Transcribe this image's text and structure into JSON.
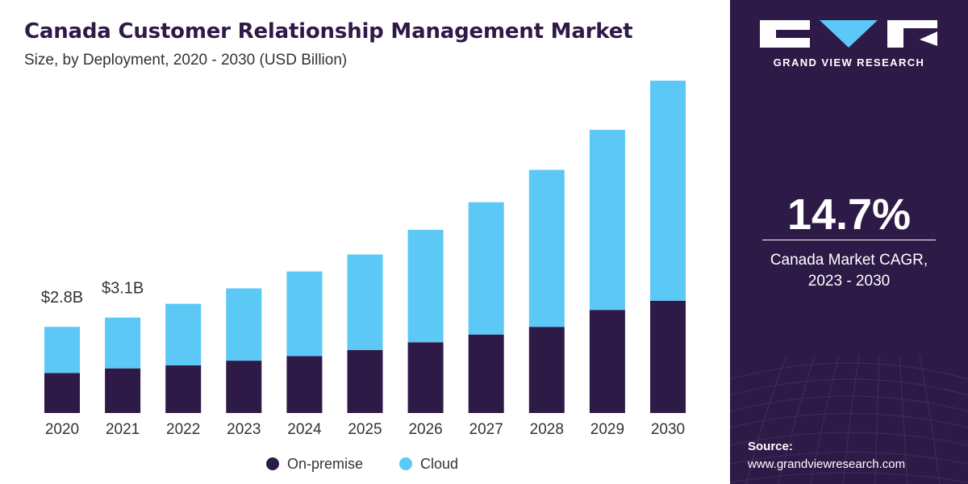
{
  "header": {
    "title": "Canada Customer Relationship Management Market",
    "subtitle": "Size, by Deployment, 2020 - 2030 (USD Billion)"
  },
  "sidebar": {
    "logo_text": "GRAND VIEW RESEARCH",
    "cagr_value": "14.7%",
    "cagr_label_line1": "Canada Market CAGR,",
    "cagr_label_line2": "2023 - 2030",
    "source_label": "Source:",
    "source_url": "www.grandviewresearch.com"
  },
  "colors": {
    "on_premise": "#2e1a47",
    "cloud": "#5bc8f5",
    "panel": "#2e1a47",
    "title": "#2e1a47",
    "logo_accent": "#5bc8f5"
  },
  "chart_data": {
    "type": "bar",
    "stacked": true,
    "categories": [
      "2020",
      "2021",
      "2022",
      "2023",
      "2024",
      "2025",
      "2026",
      "2027",
      "2028",
      "2029",
      "2030"
    ],
    "series": [
      {
        "name": "On-premise",
        "values": [
          1.3,
          1.45,
          1.55,
          1.7,
          1.85,
          2.05,
          2.3,
          2.55,
          2.8,
          3.35,
          3.65
        ]
      },
      {
        "name": "Cloud",
        "values": [
          1.5,
          1.65,
          2.0,
          2.35,
          2.75,
          3.1,
          3.65,
          4.3,
          5.1,
          5.85,
          7.15
        ]
      }
    ],
    "data_labels": [
      {
        "category": "2020",
        "text": "$2.8B"
      },
      {
        "category": "2021",
        "text": "$3.1B"
      }
    ],
    "ylim": [
      0,
      10.8
    ],
    "grid": false,
    "legend_position": "bottom",
    "xlabel": "",
    "ylabel": ""
  }
}
